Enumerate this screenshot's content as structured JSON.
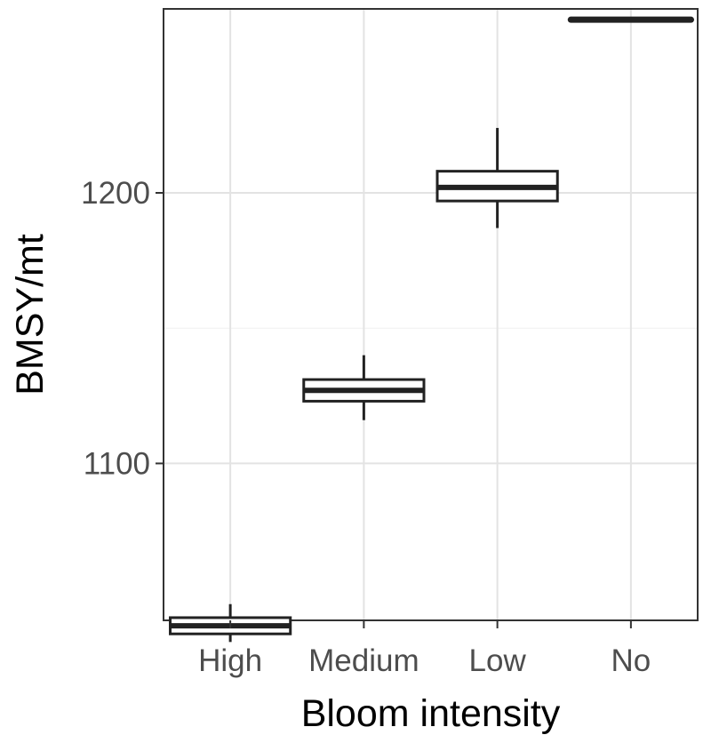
{
  "chart_data": {
    "type": "boxplot",
    "xlabel": "Bloom intensity",
    "ylabel": "BMSY/mt",
    "categories": [
      "High",
      "Medium",
      "Low",
      "No"
    ],
    "y_ticks": [
      1100,
      1200
    ],
    "ylim": [
      1042,
      1268
    ],
    "grid": true,
    "legend": "none",
    "boxes": [
      {
        "category": "High",
        "whisker_low": 1034,
        "q1": 1037,
        "median": 1040,
        "q3": 1043,
        "whisker_high": 1048
      },
      {
        "category": "Medium",
        "whisker_low": 1116,
        "q1": 1123,
        "median": 1127,
        "q3": 1131,
        "whisker_high": 1140
      },
      {
        "category": "Low",
        "whisker_low": 1187,
        "q1": 1197,
        "median": 1202,
        "q3": 1208,
        "whisker_high": 1224
      },
      {
        "category": "No",
        "whisker_low": 1264,
        "q1": 1264,
        "median": 1264,
        "q3": 1264,
        "whisker_high": 1264
      }
    ]
  }
}
